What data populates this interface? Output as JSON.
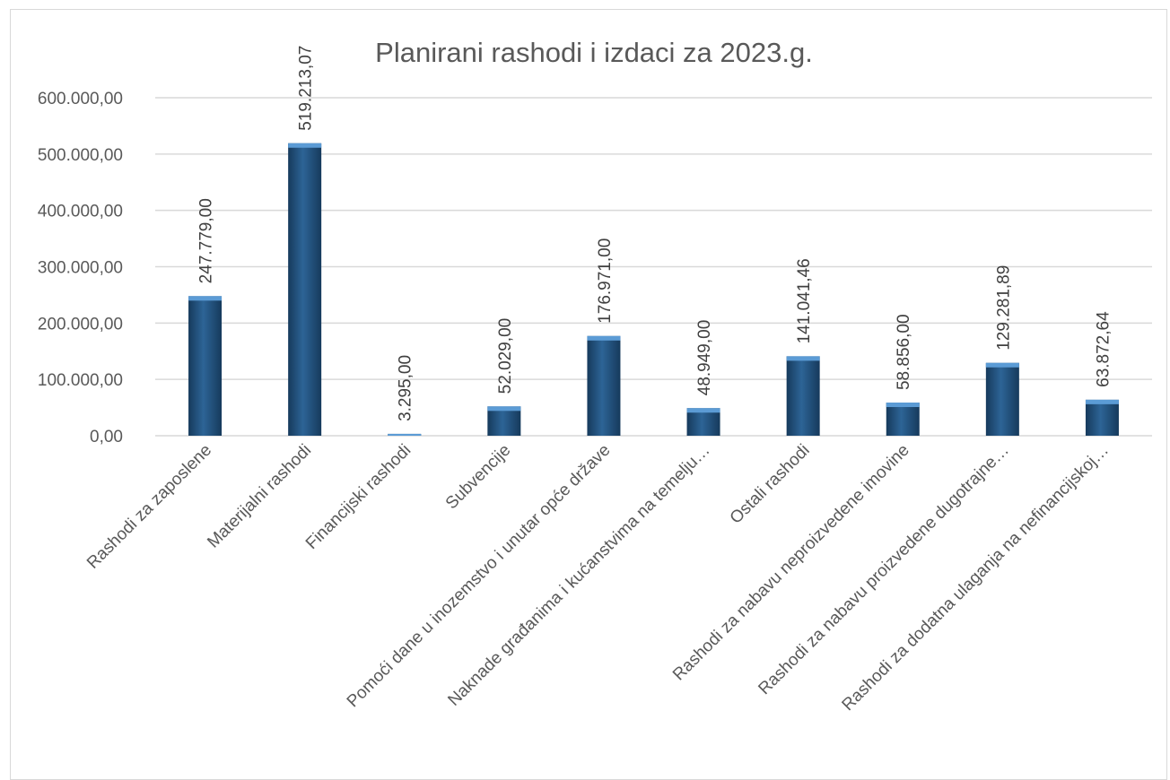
{
  "chart_data": {
    "type": "bar",
    "title": "Planirani rashodi i izdaci za 2023.g.",
    "xlabel": "",
    "ylabel": "",
    "ylim": [
      0,
      600000
    ],
    "ytick_values": [
      0,
      100000,
      200000,
      300000,
      400000,
      500000,
      600000
    ],
    "ytick_labels": [
      "0,00",
      "100.000,00",
      "200.000,00",
      "300.000,00",
      "400.000,00",
      "500.000,00",
      "600.000,00"
    ],
    "grid": true,
    "legend": "none",
    "categories": [
      "Rashodi za zaposlene",
      "Materijalni rashodi",
      "Financijski rashodi",
      "Subvencije",
      "Pomoći dane u inozemstvo i unutar opće države",
      "Naknade građanima i kućanstvima na temelju…",
      "Ostali rashodi",
      "Rashodi za nabavu neproizvedene imovine",
      "Rashodi za nabavu proizvedene dugotrajne…",
      "Rashodi za dodatna ulaganja na nefinancijskoj…"
    ],
    "values": [
      247779.0,
      519213.07,
      3295.0,
      52029.0,
      176971.0,
      48949.0,
      141041.46,
      58856.0,
      129281.89,
      63872.64
    ],
    "data_labels": [
      "247.779,00",
      "519.213,07",
      "3.295,00",
      "52.029,00",
      "176.971,00",
      "48.949,00",
      "141.041,46",
      "58.856,00",
      "129.281,89",
      "63.872,64"
    ],
    "colors": {
      "bar": "#1f4e79",
      "bar_highlight": "#3f7cb0",
      "bar_top": "#5b9bd5",
      "grid": "#d9d9d9"
    }
  }
}
